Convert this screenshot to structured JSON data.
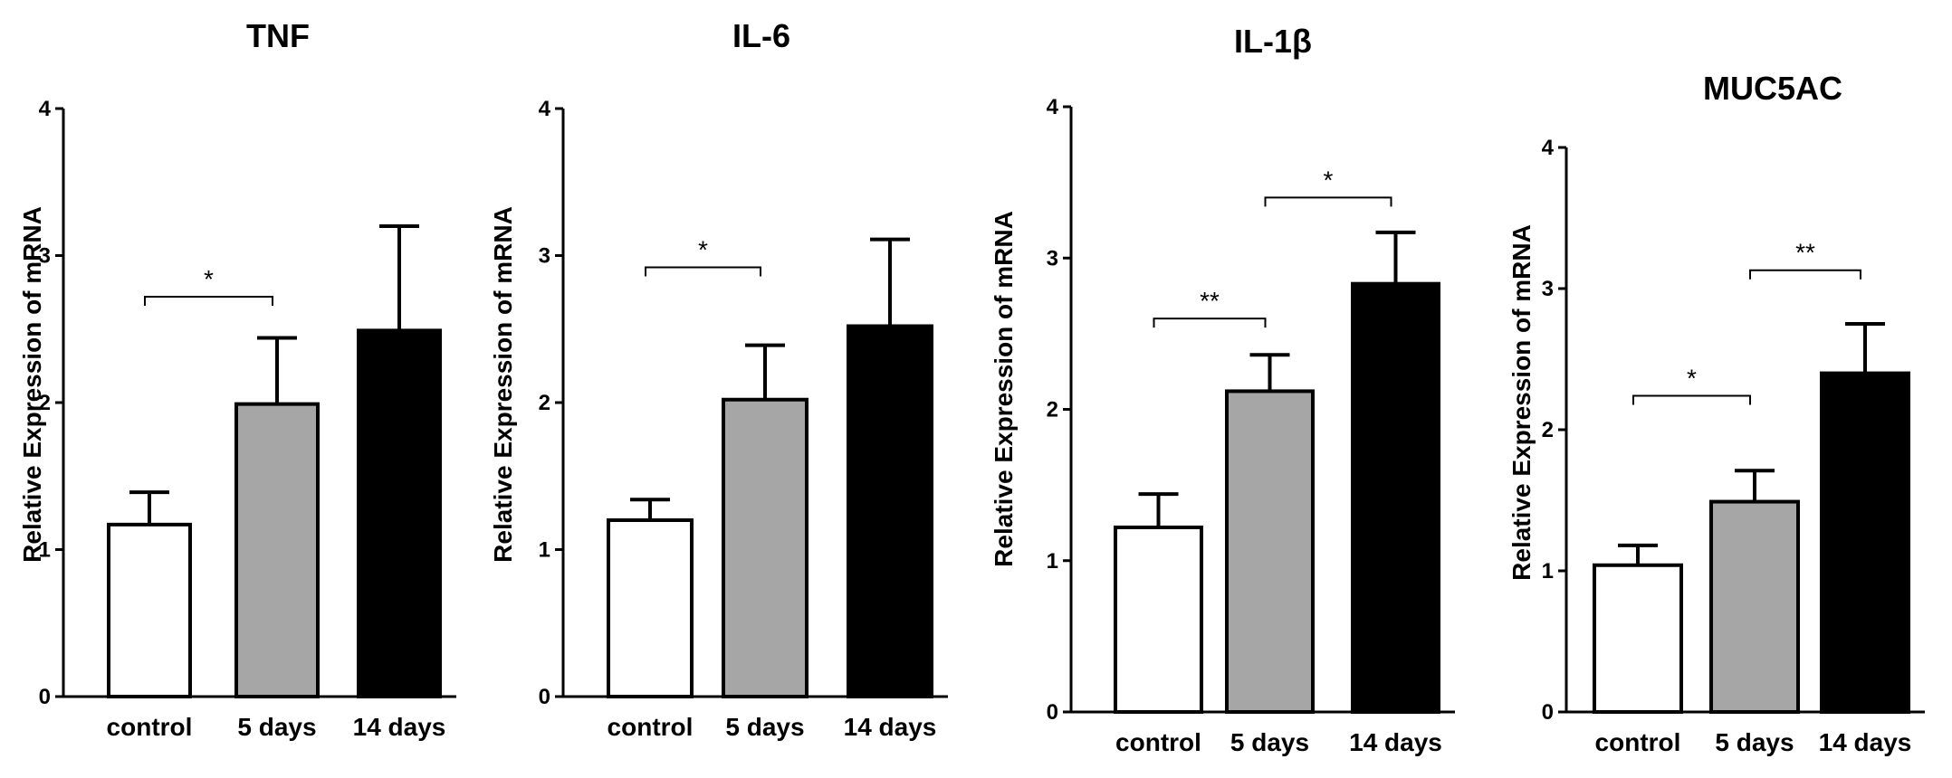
{
  "chart_data": [
    {
      "type": "bar",
      "title": "TNF",
      "ylabel": "Relative Expression of mRNA",
      "xlabel": "",
      "categories": [
        "control",
        "5 days",
        "14 days"
      ],
      "values": [
        1.17,
        1.99,
        2.49
      ],
      "errors": [
        0.22,
        0.45,
        0.71
      ],
      "bar_colors": [
        "#ffffff",
        "#a6a6a6",
        "#000000"
      ],
      "ylim": [
        0,
        4
      ],
      "yticks": [
        0,
        1,
        2,
        3,
        4
      ],
      "significance": [
        {
          "from": 0,
          "to": 1,
          "y": 2.72,
          "label": "*"
        }
      ]
    },
    {
      "type": "bar",
      "title": "IL-6",
      "ylabel": "Relative Expression of mRNA",
      "xlabel": "",
      "categories": [
        "control",
        "5 days",
        "14 days"
      ],
      "values": [
        1.2,
        2.02,
        2.52
      ],
      "errors": [
        0.14,
        0.37,
        0.59
      ],
      "bar_colors": [
        "#ffffff",
        "#a6a6a6",
        "#000000"
      ],
      "ylim": [
        0,
        4
      ],
      "yticks": [
        0,
        1,
        2,
        3,
        4
      ],
      "significance": [
        {
          "from": 0,
          "to": 1,
          "y": 2.92,
          "label": "*"
        }
      ]
    },
    {
      "type": "bar",
      "title": "IL-1β",
      "ylabel": "Relative Expression of mRNA",
      "xlabel": "",
      "categories": [
        "control",
        "5 days",
        "14 days"
      ],
      "values": [
        1.22,
        2.12,
        2.83
      ],
      "errors": [
        0.22,
        0.24,
        0.34
      ],
      "bar_colors": [
        "#ffffff",
        "#a6a6a6",
        "#000000"
      ],
      "ylim": [
        0,
        4
      ],
      "yticks": [
        0,
        1,
        2,
        3,
        4
      ],
      "significance": [
        {
          "from": 0,
          "to": 1,
          "y": 2.6,
          "label": "**"
        },
        {
          "from": 1,
          "to": 2,
          "y": 3.4,
          "label": "*"
        }
      ]
    },
    {
      "type": "bar",
      "title": "MUC5AC",
      "ylabel": "Relative Expression of mRNA",
      "xlabel": "",
      "categories": [
        "control",
        "5 days",
        "14 days"
      ],
      "values": [
        1.04,
        1.49,
        2.4
      ],
      "errors": [
        0.14,
        0.22,
        0.35
      ],
      "bar_colors": [
        "#ffffff",
        "#a6a6a6",
        "#000000"
      ],
      "ylim": [
        0,
        4
      ],
      "yticks": [
        0,
        1,
        2,
        3,
        4
      ],
      "significance": [
        {
          "from": 0,
          "to": 1,
          "y": 2.24,
          "label": "*"
        },
        {
          "from": 1,
          "to": 2,
          "y": 3.13,
          "label": "**"
        }
      ]
    }
  ]
}
